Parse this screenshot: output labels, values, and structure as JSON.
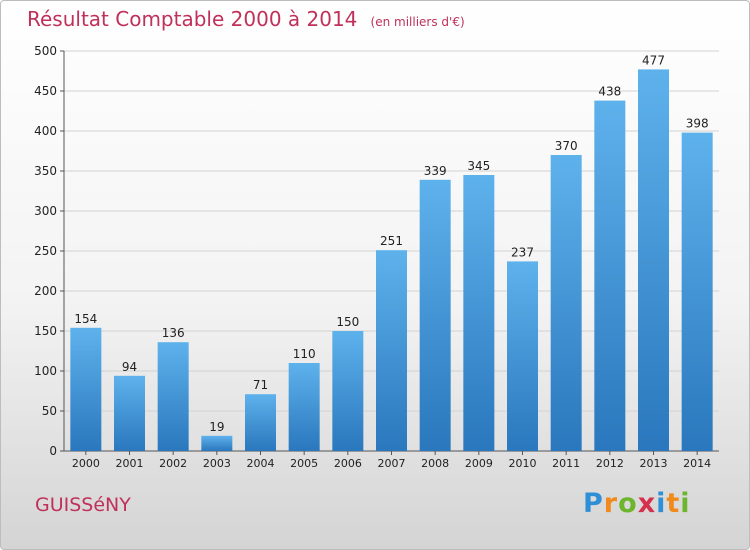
{
  "chart_data": {
    "type": "bar",
    "title": "Résultat Comptable 2000 à 2014",
    "subtitle": "(en milliers d'€)",
    "categories": [
      "2000",
      "2001",
      "2002",
      "2003",
      "2004",
      "2005",
      "2006",
      "2007",
      "2008",
      "2009",
      "2010",
      "2011",
      "2012",
      "2013",
      "2014"
    ],
    "values": [
      154,
      94,
      136,
      19,
      71,
      110,
      150,
      251,
      339,
      345,
      237,
      370,
      438,
      477,
      398
    ],
    "data_labels": [
      "154",
      "94",
      "136",
      "19",
      "71",
      "110",
      "150",
      "251",
      "339",
      "345",
      "237",
      "370",
      "438",
      "477",
      "398"
    ],
    "ylim": [
      0,
      500
    ],
    "yticks": [
      0,
      50,
      100,
      150,
      200,
      250,
      300,
      350,
      400,
      450,
      500
    ],
    "ytick_labels": [
      "0",
      "50",
      "100",
      "150",
      "200",
      "250",
      "300",
      "350",
      "400",
      "450",
      "500"
    ],
    "grid": true,
    "bar_color": "#3a8fd8",
    "text_color": "#c0305a"
  },
  "commune": "GUISSéNY",
  "logo": {
    "letters": [
      {
        "char": "P",
        "color": "#2f8fd6"
      },
      {
        "char": "r",
        "color": "#f08a1c"
      },
      {
        "char": "o",
        "color": "#6cb52d"
      },
      {
        "char": "x",
        "color": "#d6304c"
      },
      {
        "char": "i",
        "color": "#2f8fd6"
      },
      {
        "char": "t",
        "color": "#f08a1c"
      },
      {
        "char": "i",
        "color": "#6cb52d"
      }
    ]
  }
}
